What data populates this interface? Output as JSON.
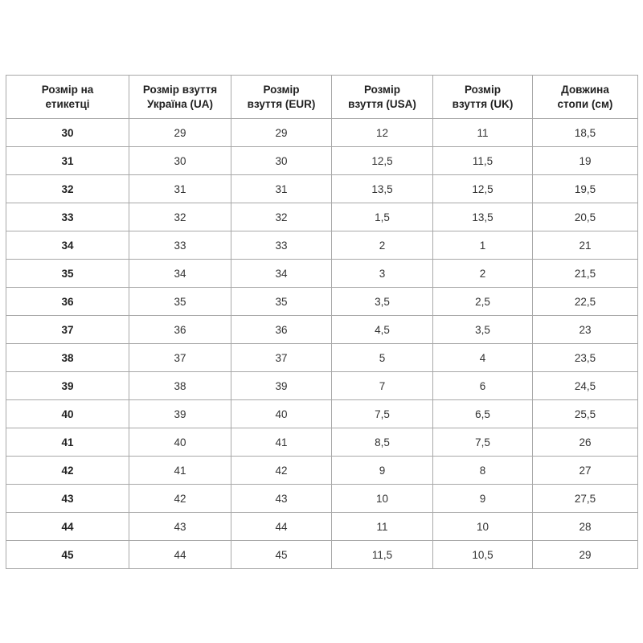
{
  "table": {
    "header": [
      "Розмір на\nетикетці",
      "Розмір взуття\nУкраїна (UA)",
      "Розмір\nвзуття (EUR)",
      "Розмір\nвзуття (USA)",
      "Розмір\nвзуття (UK)",
      "Довжина\nстопи (см)"
    ],
    "rows": [
      [
        "30",
        "29",
        "29",
        "12",
        "11",
        "18,5"
      ],
      [
        "31",
        "30",
        "30",
        "12,5",
        "11,5",
        "19"
      ],
      [
        "32",
        "31",
        "31",
        "13,5",
        "12,5",
        "19,5"
      ],
      [
        "33",
        "32",
        "32",
        "1,5",
        "13,5",
        "20,5"
      ],
      [
        "34",
        "33",
        "33",
        "2",
        "1",
        "21"
      ],
      [
        "35",
        "34",
        "34",
        "3",
        "2",
        "21,5"
      ],
      [
        "36",
        "35",
        "35",
        "3,5",
        "2,5",
        "22,5"
      ],
      [
        "37",
        "36",
        "36",
        "4,5",
        "3,5",
        "23"
      ],
      [
        "38",
        "37",
        "37",
        "5",
        "4",
        "23,5"
      ],
      [
        "39",
        "38",
        "39",
        "7",
        "6",
        "24,5"
      ],
      [
        "40",
        "39",
        "40",
        "7,5",
        "6,5",
        "25,5"
      ],
      [
        "41",
        "40",
        "41",
        "8,5",
        "7,5",
        "26"
      ],
      [
        "42",
        "41",
        "42",
        "9",
        "8",
        "27"
      ],
      [
        "43",
        "42",
        "43",
        "10",
        "9",
        "27,5"
      ],
      [
        "44",
        "43",
        "44",
        "11",
        "10",
        "28"
      ],
      [
        "45",
        "44",
        "45",
        "11,5",
        "10,5",
        "29"
      ]
    ]
  }
}
